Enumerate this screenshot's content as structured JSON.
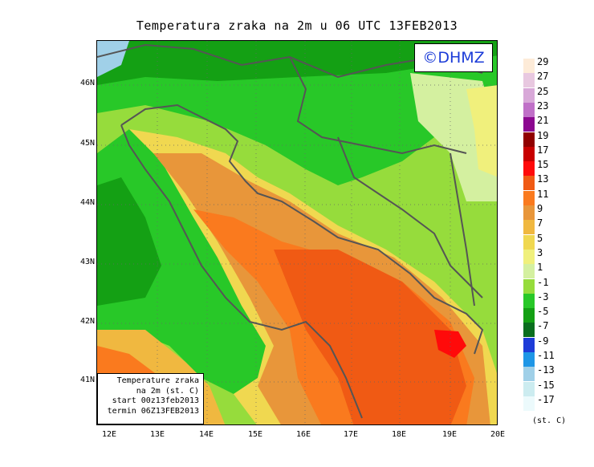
{
  "title": "Temperatura zraka na 2m u 06 UTC 13FEB2013",
  "logo_text": "©DHMZ",
  "info_box": {
    "line1": "Temperature zraka",
    "line2": "na 2m (st. C)",
    "line3": "start 00z13feb2013",
    "line4": "termin 06Z13FEB2013"
  },
  "lat_labels": [
    "46N",
    "45N",
    "44N",
    "43N",
    "42N",
    "41N"
  ],
  "lon_labels": [
    "12E",
    "13E",
    "14E",
    "15E",
    "16E",
    "17E",
    "18E",
    "19E",
    "20E"
  ],
  "legend": {
    "levels": [
      "29",
      "27",
      "25",
      "23",
      "21",
      "19",
      "17",
      "15",
      "13",
      "11",
      "9",
      "7",
      "5",
      "3",
      "1",
      "-1",
      "-3",
      "-5",
      "-7",
      "-9",
      "-11",
      "-13",
      "-15",
      "-17"
    ],
    "colors": [
      "#fdebd8",
      "#e8c8e0",
      "#d8a8d8",
      "#c070c8",
      "#8c0890",
      "#900000",
      "#c80000",
      "#ff0a0a",
      "#f05a14",
      "#fa7a1e",
      "#e8963a",
      "#f0b840",
      "#f0d850",
      "#f0f07c",
      "#d4f0a0",
      "#96dc3c",
      "#28c828",
      "#14a014",
      "#0a6e1e",
      "#1e3cd8",
      "#1e96e6",
      "#a0d0e8",
      "#ccecf0",
      "#ecfafc"
    ],
    "units": "(st. C)"
  }
}
